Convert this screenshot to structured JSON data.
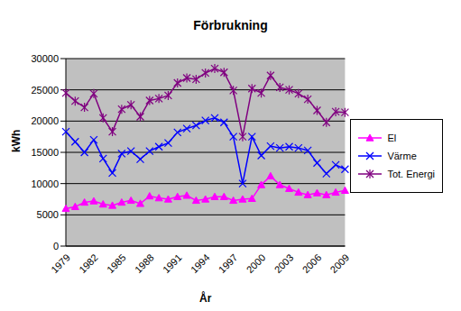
{
  "chart_data": {
    "type": "line",
    "title": "Förbrukning",
    "x_label": "År",
    "y_label": "kWh",
    "categories": [
      "1979",
      null,
      null,
      "1982",
      null,
      null,
      "1985",
      null,
      null,
      "1988",
      null,
      null,
      "1991",
      null,
      null,
      "1994",
      null,
      null,
      "1997",
      null,
      null,
      "2000",
      null,
      null,
      "2003",
      null,
      null,
      "2006",
      null,
      null,
      "2009"
    ],
    "series": [
      {
        "name": "El",
        "color": "#ff00ff",
        "marker": "triangle",
        "values": [
          6000,
          6300,
          7000,
          7200,
          6700,
          6500,
          7000,
          7300,
          6800,
          8000,
          7700,
          7500,
          7900,
          8100,
          7300,
          7500,
          7900,
          7900,
          7300,
          7500,
          7600,
          9800,
          11200,
          9800,
          9200,
          8600,
          8200,
          8500,
          8200,
          8600,
          8900
        ]
      },
      {
        "name": "Värme",
        "color": "#0000ff",
        "marker": "x",
        "values": [
          18300,
          16700,
          15000,
          17000,
          14000,
          11700,
          14800,
          15200,
          13900,
          15200,
          15900,
          16500,
          18200,
          18800,
          19300,
          20100,
          20500,
          19800,
          17500,
          10000,
          17500,
          14500,
          16000,
          15700,
          15900,
          15700,
          15300,
          13300,
          11600,
          13000,
          12300
        ]
      },
      {
        "name": "Tot. Energi",
        "color": "#800080",
        "marker": "star",
        "values": [
          24500,
          23200,
          22200,
          24400,
          20500,
          18300,
          21900,
          22600,
          20700,
          23300,
          23600,
          24100,
          26100,
          26900,
          26700,
          27700,
          28400,
          27800,
          24900,
          17500,
          25200,
          24500,
          27300,
          25400,
          25000,
          24400,
          23500,
          21700,
          19800,
          21500,
          21400
        ]
      }
    ],
    "ylim": [
      0,
      30000
    ],
    "yticks": [
      0,
      5000,
      10000,
      15000,
      20000,
      25000,
      30000
    ],
    "grid": true,
    "legend": "right"
  }
}
